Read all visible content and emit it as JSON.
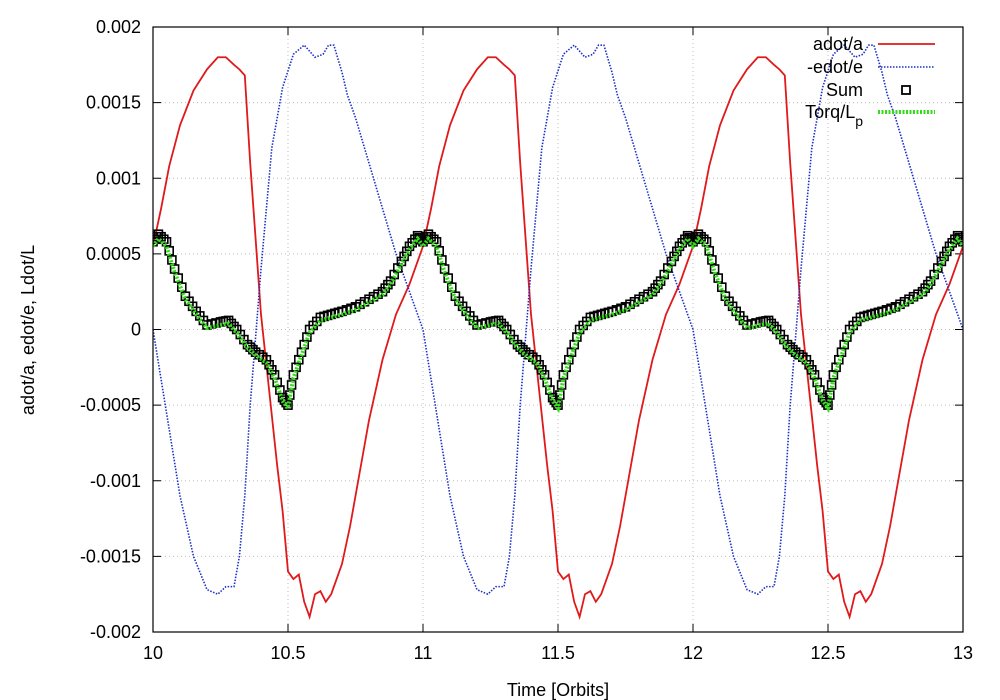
{
  "chart_data": {
    "type": "line",
    "xlabel": "Time [Orbits]",
    "ylabel": "adot/a, edot/e, Ldot/L",
    "xlim": [
      10,
      13
    ],
    "ylim": [
      -0.002,
      0.002
    ],
    "xticks": [
      10,
      10.5,
      11,
      11.5,
      12,
      12.5,
      13
    ],
    "xtick_labels": [
      "10",
      "10.5",
      "11",
      "11.5",
      "12",
      "12.5",
      "13"
    ],
    "yticks": [
      -0.002,
      -0.0015,
      -0.001,
      -0.0005,
      0,
      0.0005,
      0.001,
      0.0015,
      0.002
    ],
    "ytick_labels": [
      "-0.002",
      "-0.0015",
      "-0.001",
      "-0.0005",
      "0",
      "0.0005",
      "0.001",
      "0.0015",
      "0.002"
    ],
    "grid": true,
    "legend_position": "top-right",
    "period": 1.0,
    "series": [
      {
        "name": "adot/a",
        "style": "solid",
        "color": "#e0191b",
        "base_cycle": {
          "t": [
            0,
            0.03,
            0.06,
            0.1,
            0.15,
            0.2,
            0.24,
            0.27,
            0.3,
            0.32,
            0.34,
            0.36,
            0.38,
            0.4,
            0.43,
            0.46,
            0.48,
            0.49,
            0.5,
            0.52,
            0.54,
            0.56,
            0.58,
            0.6,
            0.62,
            0.64,
            0.66,
            0.68,
            0.7,
            0.73,
            0.76,
            0.8,
            0.85,
            0.9,
            0.95,
            1.0
          ],
          "y": [
            0.00055,
            0.0008,
            0.00108,
            0.00135,
            0.00158,
            0.00172,
            0.0018,
            0.0018,
            0.00175,
            0.00172,
            0.00168,
            0.0011,
            0.0006,
            0.0001,
            -0.0004,
            -0.0009,
            -0.0012,
            -0.0014,
            -0.0016,
            -0.00165,
            -0.00162,
            -0.0018,
            -0.0019,
            -0.00175,
            -0.00173,
            -0.0018,
            -0.00175,
            -0.00165,
            -0.00155,
            -0.0013,
            -0.001,
            -0.0006,
            -0.0002,
            0.0001,
            0.0003,
            0.00055
          ]
        }
      },
      {
        "name": "-edot/e",
        "style": "dotted",
        "color": "#1b2fc9",
        "base_cycle": {
          "t": [
            0,
            0.05,
            0.1,
            0.15,
            0.2,
            0.24,
            0.27,
            0.3,
            0.32,
            0.34,
            0.36,
            0.4,
            0.44,
            0.48,
            0.52,
            0.56,
            0.6,
            0.63,
            0.65,
            0.67,
            0.7,
            0.72,
            0.75,
            0.8,
            0.85,
            0.9,
            0.95,
            1.0
          ],
          "y": [
            0.0,
            -0.00055,
            -0.0011,
            -0.0015,
            -0.00172,
            -0.00175,
            -0.0017,
            -0.0017,
            -0.0015,
            -0.0011,
            -0.0005,
            0.0004,
            0.0012,
            0.0016,
            0.00182,
            0.00188,
            0.0018,
            0.00182,
            0.00188,
            0.00188,
            0.0017,
            0.00155,
            0.0014,
            0.0011,
            0.0008,
            0.0005,
            0.00025,
            0.0
          ]
        }
      },
      {
        "name": "Sum",
        "style": "squares",
        "color": "#000000",
        "base_cycle": {
          "t": [
            0,
            0.02,
            0.05,
            0.08,
            0.12,
            0.16,
            0.2,
            0.25,
            0.28,
            0.31,
            0.35,
            0.38,
            0.42,
            0.45,
            0.48,
            0.5,
            0.52,
            0.55,
            0.58,
            0.62,
            0.66,
            0.7,
            0.75,
            0.8,
            0.85,
            0.88,
            0.92,
            0.95,
            0.98,
            1.0
          ],
          "y": [
            0.00058,
            0.00063,
            0.00058,
            0.0004,
            0.00022,
            0.00012,
            3e-05,
            5e-05,
            6e-05,
            0.0,
            -0.0001,
            -0.00015,
            -0.0002,
            -0.0003,
            -0.00045,
            -0.0005,
            -0.0003,
            -0.00015,
            0.0,
            8e-05,
            0.0001,
            0.00012,
            0.00015,
            0.0002,
            0.00025,
            0.00032,
            0.00045,
            0.00055,
            0.00062,
            0.00058
          ]
        }
      },
      {
        "name": "Torq/L",
        "name_subscript": "p",
        "style": "thick-dotted",
        "color": "#33dd1a",
        "base_cycle": {
          "t": [
            0,
            0.02,
            0.05,
            0.08,
            0.12,
            0.16,
            0.2,
            0.25,
            0.28,
            0.31,
            0.35,
            0.38,
            0.42,
            0.45,
            0.48,
            0.5,
            0.52,
            0.55,
            0.58,
            0.62,
            0.66,
            0.7,
            0.75,
            0.8,
            0.85,
            0.88,
            0.92,
            0.95,
            0.98,
            1.0
          ],
          "y": [
            0.00055,
            0.0006,
            0.00055,
            0.00038,
            0.0002,
            0.0001,
            1e-05,
            3e-05,
            4e-05,
            -2e-05,
            -0.00012,
            -0.00017,
            -0.00022,
            -0.00032,
            -0.00047,
            -0.00052,
            -0.00032,
            -0.00017,
            -2e-05,
            6e-05,
            8e-05,
            0.0001,
            0.00013,
            0.00018,
            0.00023,
            0.0003,
            0.00043,
            0.00053,
            0.0006,
            0.00055
          ]
        }
      }
    ]
  }
}
